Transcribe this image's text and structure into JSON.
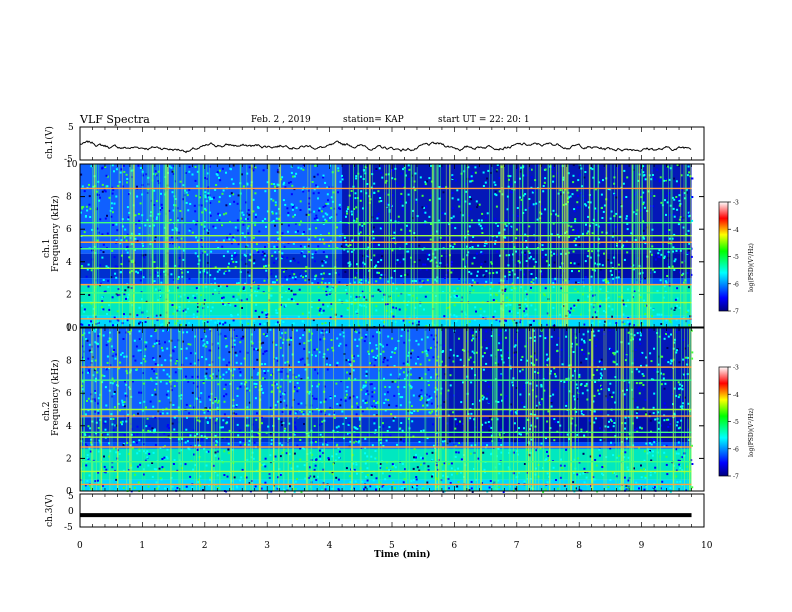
{
  "header": {
    "title": "VLF Spectra",
    "date": "Feb. 2 , 2019",
    "station": "station= KAP",
    "start": "start UT =  22: 20: 1"
  },
  "chart_data": [
    {
      "type": "line",
      "panel": "ch1-waveform",
      "ylabel": "ch.1(V)",
      "ylim": [
        -5,
        5
      ],
      "yticks": [
        "5",
        "-5"
      ],
      "xlim": [
        0,
        10
      ],
      "description_values": "noisy trace mostly between -1 and 1 V",
      "color": "#000000"
    },
    {
      "type": "heatmap",
      "panel": "ch1-spectrogram",
      "ylabel": "ch.1",
      "ylabel2": "Frequency (kHz)",
      "ylim": [
        0,
        10
      ],
      "yticks": [
        "0",
        "2",
        "4",
        "6",
        "8",
        "10"
      ],
      "xlim": [
        0,
        9.8
      ],
      "colorbar": {
        "label": "log(PSD)(V²/Hz)",
        "range": [
          -7,
          -3
        ],
        "ticks": [
          "-3",
          "-4",
          "-5",
          "-6",
          "-7"
        ]
      },
      "transition_min": 4.2,
      "bright_bands_khz": [
        0.5,
        1.5,
        2.1,
        2.6,
        3.6,
        4.8,
        5.2,
        5.6,
        6.4,
        8.5
      ]
    },
    {
      "type": "heatmap",
      "panel": "ch2-spectrogram",
      "ylabel": "ch.2",
      "ylabel2": "Frequency (kHz)",
      "ylim": [
        0,
        10
      ],
      "yticks": [
        "0",
        "2",
        "4",
        "6",
        "8",
        "10"
      ],
      "xlim": [
        0,
        9.8
      ],
      "colorbar": {
        "label": "log(PSD)(V²/Hz)",
        "range": [
          -7,
          -3
        ],
        "ticks": [
          "-3",
          "-4",
          "-5",
          "-6",
          "-7"
        ]
      },
      "transition_min": 5.8,
      "bright_bands_khz": [
        0.4,
        1.2,
        1.8,
        2.7,
        3.3,
        3.6,
        4.6,
        5.0,
        6.8,
        7.6
      ]
    },
    {
      "type": "line",
      "panel": "ch3-waveform",
      "ylabel": "ch.3(V)",
      "ylim": [
        -5,
        5
      ],
      "yticks": [
        "5",
        "0",
        "-5"
      ],
      "xlim": [
        0,
        10
      ],
      "xlabel": "Time (min)",
      "xticks": [
        "0",
        "1",
        "2",
        "3",
        "4",
        "5",
        "6",
        "7",
        "8",
        "9",
        "10"
      ],
      "x": [
        0,
        9.8
      ],
      "y": [
        -1.4,
        -1.4
      ],
      "color": "#000000"
    }
  ]
}
